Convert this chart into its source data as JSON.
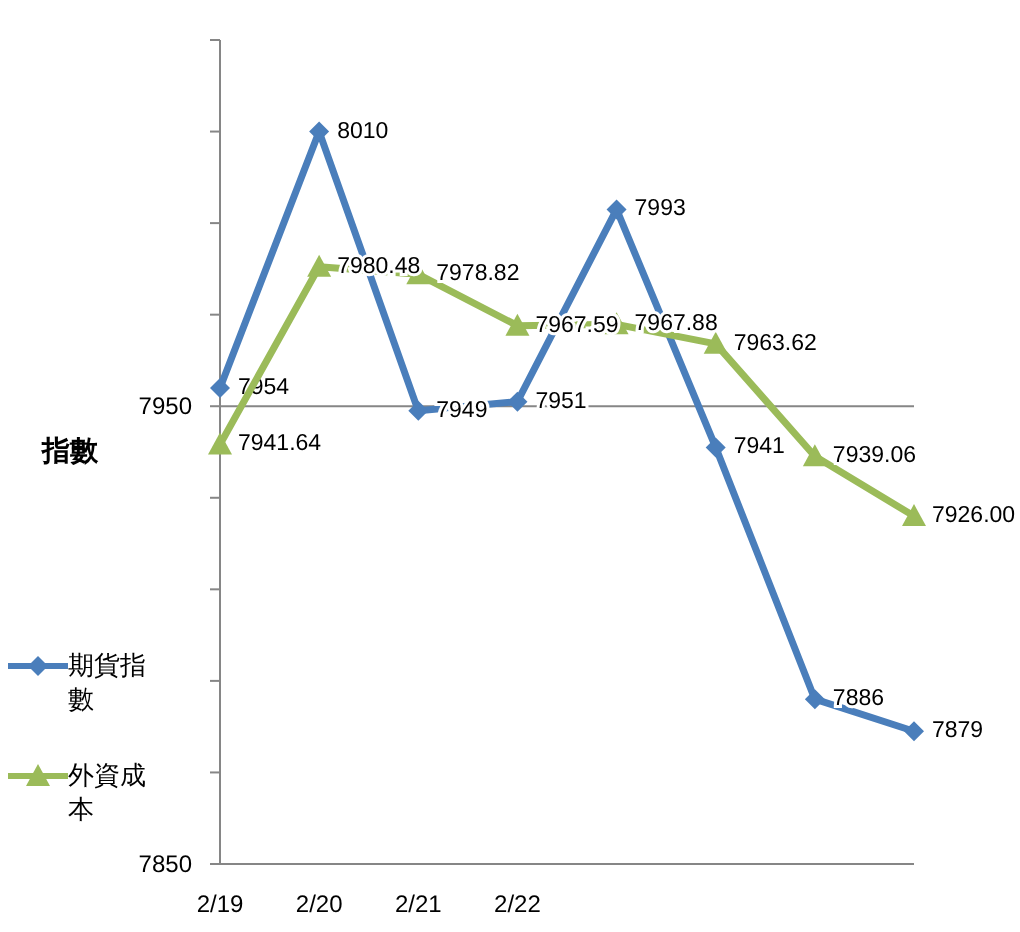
{
  "chart_data": {
    "type": "line",
    "ylabel": "指數",
    "categories": [
      "2/19",
      "2/20",
      "2/21",
      "2/22",
      null,
      null,
      null,
      null
    ],
    "series": [
      {
        "name": "期貨指數",
        "color": "#4a7ebb",
        "marker": "diamond",
        "values": [
          7954,
          8010,
          7949,
          7951,
          7993,
          7941,
          7886,
          7879
        ],
        "value_labels": [
          "7954",
          "8010",
          "7949",
          "7951",
          "7993",
          "7941",
          "7886",
          "7879"
        ]
      },
      {
        "name": "外資成本",
        "color": "#9bbb59",
        "marker": "triangle",
        "values": [
          7941.64,
          7980.48,
          7978.82,
          7967.59,
          7967.88,
          7963.62,
          7939.06,
          7926.0
        ],
        "value_labels": [
          "7941.64",
          "7980.48",
          "7978.82",
          "7967.59",
          "7967.88",
          "7963.62",
          "7939.06",
          "7926.00"
        ]
      }
    ],
    "ylim": [
      7850,
      8030
    ],
    "yticks": [
      7850,
      {
        "value": 7870,
        "label": null
      },
      {
        "value": 7890,
        "label": null
      },
      {
        "value": 7910,
        "label": null
      },
      {
        "value": 7930,
        "label": null
      },
      7950,
      {
        "value": 7970,
        "label": null
      },
      {
        "value": 7990,
        "label": null
      },
      {
        "value": 8010,
        "label": null
      },
      {
        "value": 8030,
        "label": null
      }
    ],
    "grid": "y",
    "legend": "left"
  }
}
